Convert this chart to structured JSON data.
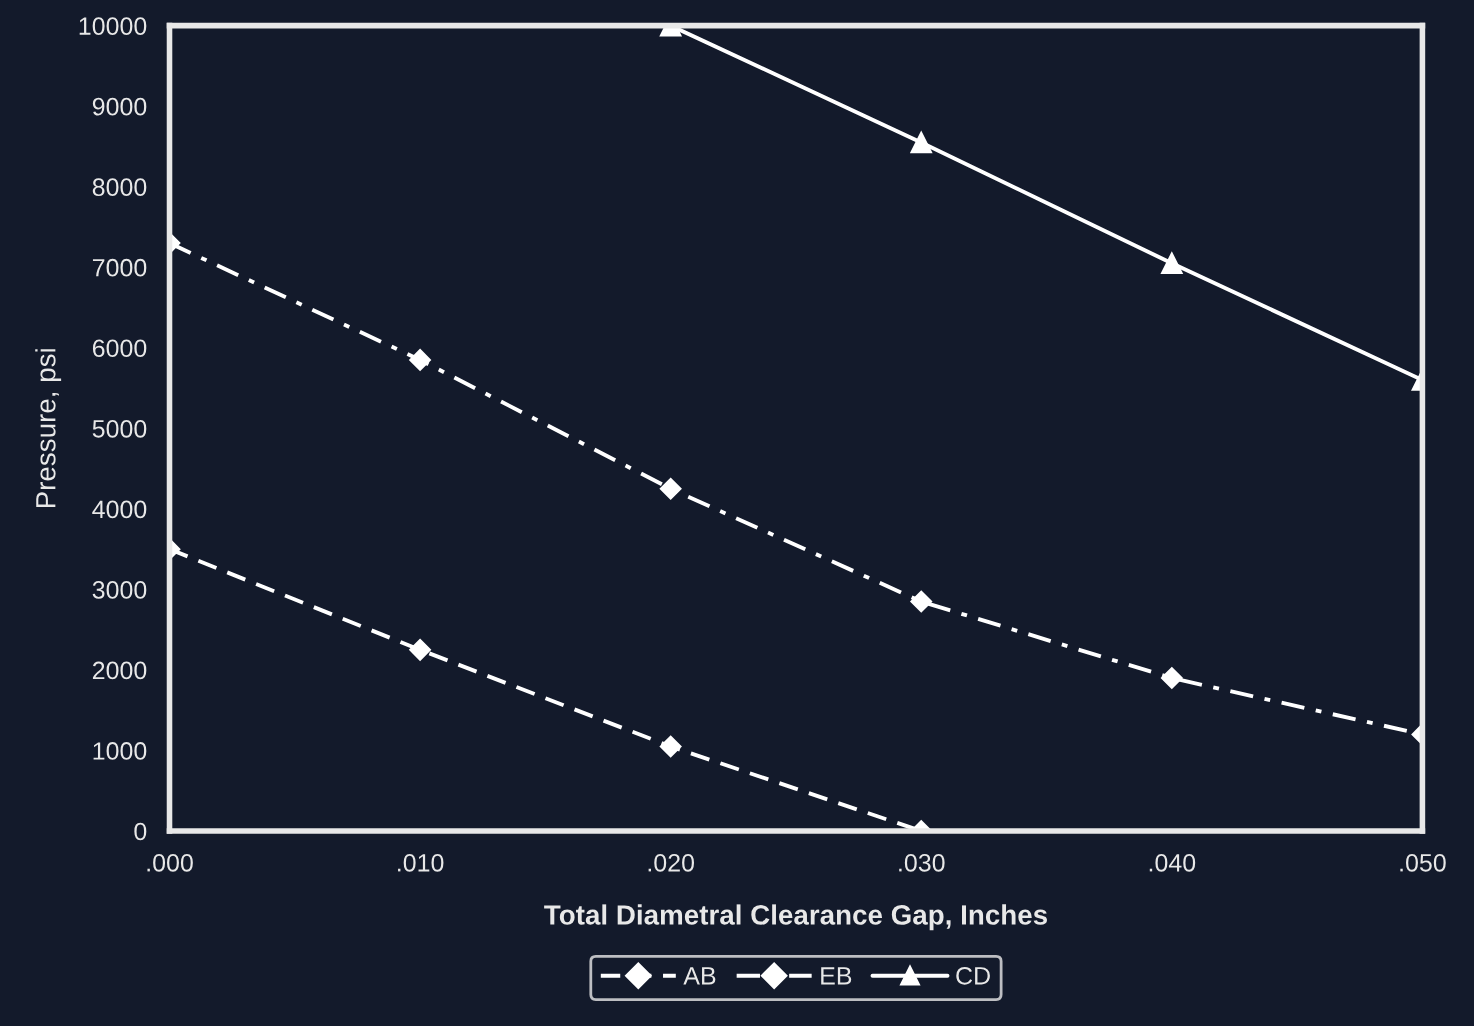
{
  "chart_data": {
    "type": "line",
    "xlabel": "Total Diametral Clearance Gap, Inches",
    "ylabel": "Pressure, psi",
    "series": [
      {
        "name": "AB",
        "color": "#ffffff",
        "x": [
          0,
          0.01,
          0.02,
          0.03
        ],
        "values": [
          3500,
          2250,
          1050,
          0
        ],
        "marker": "diamond",
        "line_style": "dashed"
      },
      {
        "name": "EB",
        "color": "#ffffff",
        "x": [
          0,
          0.01,
          0.02,
          0.03,
          0.04,
          0.05
        ],
        "values": [
          7300,
          5850,
          4250,
          2850,
          1900,
          1200
        ],
        "marker": "diamond",
        "line_style": "dashdot"
      },
      {
        "name": "CD",
        "color": "#ffffff",
        "x": [
          0.02,
          0.03,
          0.04,
          0.05
        ],
        "values": [
          10000,
          8550,
          7050,
          5600
        ],
        "marker": "triangle",
        "line_style": "solid"
      }
    ],
    "xlim": [
      0,
      0.05
    ],
    "ylim": [
      0,
      10000
    ],
    "xticks": [
      {
        "value": 0,
        "label": ".000"
      },
      {
        "value": 0.01,
        "label": ".010"
      },
      {
        "value": 0.02,
        "label": ".020"
      },
      {
        "value": 0.03,
        "label": ".030"
      },
      {
        "value": 0.04,
        "label": ".040"
      },
      {
        "value": 0.05,
        "label": ".050"
      }
    ],
    "yticks": [
      0,
      1000,
      2000,
      3000,
      4000,
      5000,
      6000,
      7000,
      8000,
      9000,
      10000
    ],
    "grid": false,
    "legend": "bottom"
  }
}
